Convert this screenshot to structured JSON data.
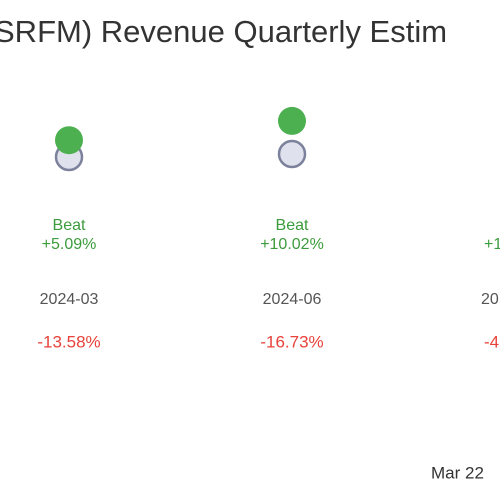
{
  "title": "SRFM) Revenue Quarterly Estim",
  "columns": [
    {
      "result": "Beat",
      "surprise": 5.09,
      "surprise_label": "+5.09%",
      "period": "2024-03",
      "change_label": "-13.58%"
    },
    {
      "result": "Beat",
      "surprise": 10.02,
      "surprise_label": "+10.02%",
      "period": "2024-06",
      "change_label": "-16.73%"
    }
  ],
  "partial_column": {
    "surprise_label": "+1",
    "period": "20",
    "change_label": "-4"
  },
  "footer": "Mar 22"
}
